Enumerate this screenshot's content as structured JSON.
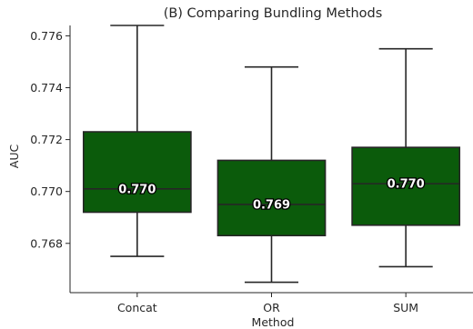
{
  "chart_data": {
    "type": "box",
    "title": "(B) Comparing Bundling Methods",
    "xlabel": "Method",
    "ylabel": "AUC",
    "ylim": [
      0.7661,
      0.7764
    ],
    "yticks": [
      0.768,
      0.77,
      0.772,
      0.774,
      0.776
    ],
    "ytick_labels": [
      "0.768",
      "0.770",
      "0.772",
      "0.774",
      "0.776"
    ],
    "grid": false,
    "colors": {
      "box_fill": "#0b5b0b",
      "line": "#262626"
    },
    "categories": [
      "Concat",
      "OR",
      "SUM"
    ],
    "boxes": [
      {
        "category": "Concat",
        "whisker_low": 0.7675,
        "q1": 0.7692,
        "median": 0.7701,
        "q3": 0.7723,
        "whisker_high": 0.7764,
        "label": "0.770"
      },
      {
        "category": "OR",
        "whisker_low": 0.7665,
        "q1": 0.7683,
        "median": 0.7695,
        "q3": 0.7712,
        "whisker_high": 0.7748,
        "label": "0.769"
      },
      {
        "category": "SUM",
        "whisker_low": 0.7671,
        "q1": 0.7687,
        "median": 0.7703,
        "q3": 0.7717,
        "whisker_high": 0.7755,
        "label": "0.770"
      }
    ]
  }
}
